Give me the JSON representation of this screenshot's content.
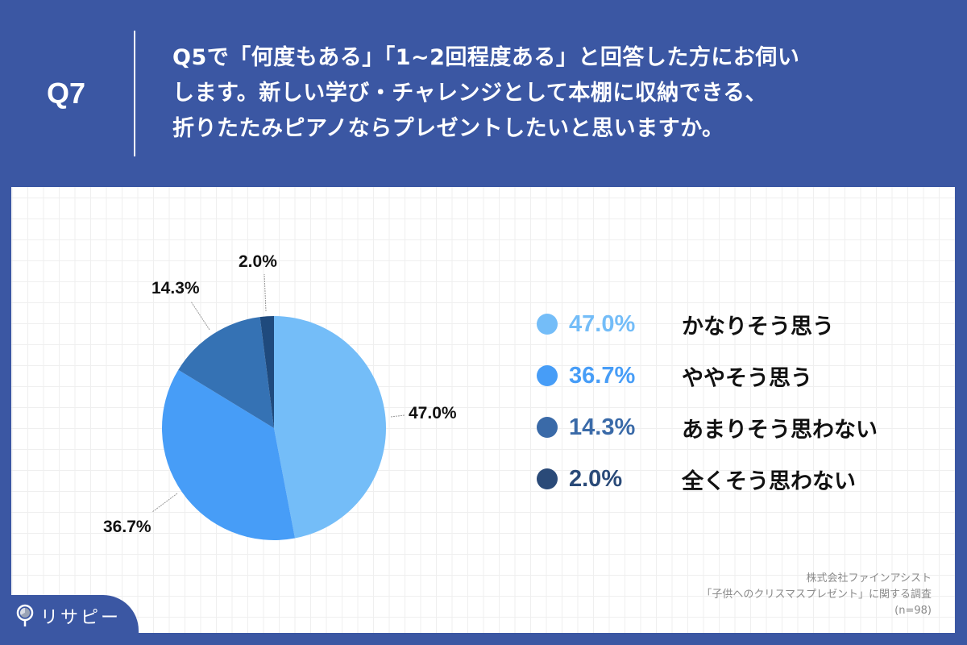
{
  "header": {
    "question_number": "Q7",
    "question_lines": [
      "Q5で「何度もある」「1~2回程度ある」と回答した方にお伺い",
      "します。新しい学び・チャレンジとして本棚に収納できる、",
      "折りたたみピアノならプレゼントしたいと思いますか。"
    ]
  },
  "colors": {
    "background": "#3b57a3",
    "slice_1": "#74bdf8",
    "slice_2": "#479df7",
    "slice_3": "#3572b4",
    "slice_4": "#1f4a7d",
    "legend_pct_1": "#74bdf8",
    "legend_pct_2": "#479df7",
    "legend_pct_3": "#3a6aa8",
    "legend_pct_4": "#2a4a78"
  },
  "pie_labels": {
    "slice_1": "47.0%",
    "slice_2": "36.7%",
    "slice_3": "14.3%",
    "slice_4": "2.0%"
  },
  "legend": [
    {
      "pct": "47.0%",
      "label": "かなりそう思う"
    },
    {
      "pct": "36.7%",
      "label": "ややそう思う"
    },
    {
      "pct": "14.3%",
      "label": "あまりそう思わない"
    },
    {
      "pct": "2.0%",
      "label": "全くそう思わない"
    }
  ],
  "source": {
    "line1": "株式会社ファインアシスト",
    "line2": "「子供へのクリスマスプレゼント」に関する調査",
    "line3": "(n=98)"
  },
  "brand": {
    "name": "リサピー",
    "icon": "magnifier-pie-icon"
  },
  "chart_data": {
    "type": "pie",
    "title": "Q5で「何度もある」「1~2回程度ある」と回答した方にお伺いします。新しい学び・チャレンジとして本棚に収納できる、折りたたみピアノならプレゼントしたいと思いますか。",
    "categories": [
      "かなりそう思う",
      "ややそう思う",
      "あまりそう思わない",
      "全くそう思わない"
    ],
    "values": [
      47.0,
      36.7,
      14.3,
      2.0
    ],
    "unit": "%",
    "n": 98,
    "legend_position": "right",
    "start_angle": "12 o'clock, clockwise"
  }
}
